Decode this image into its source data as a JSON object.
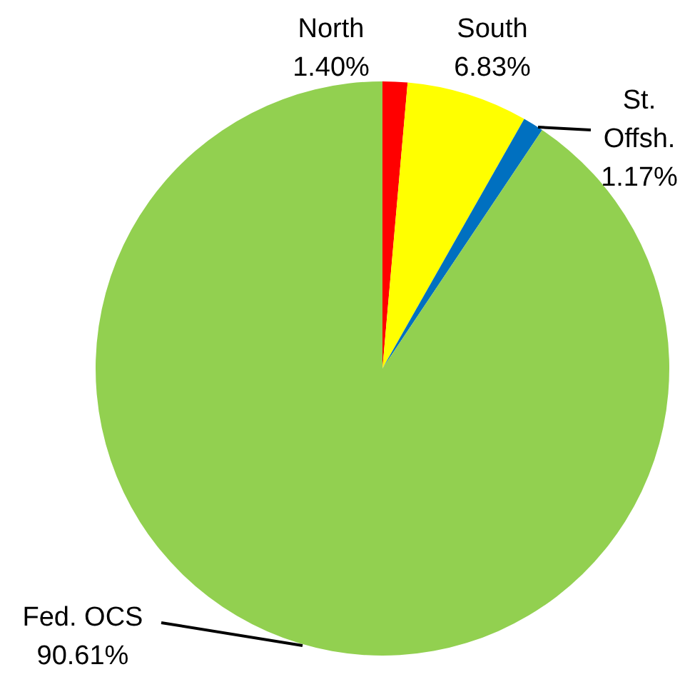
{
  "chart_data": {
    "type": "pie",
    "categories": [
      "North",
      "South",
      "St. Offsh.",
      "Fed. OCS"
    ],
    "values": [
      1.4,
      6.83,
      1.17,
      90.61
    ],
    "colors": [
      "#ff0000",
      "#ffff00",
      "#0070c0",
      "#92d050"
    ],
    "value_labels": [
      "1.40%",
      "6.83%",
      "1.17%",
      "90.61%"
    ]
  }
}
